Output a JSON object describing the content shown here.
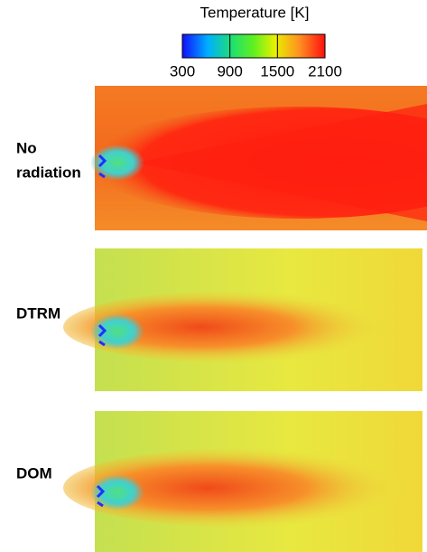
{
  "colorbar": {
    "title": "Temperature [K]",
    "lim": [
      300,
      2100
    ],
    "ticks": [
      300,
      900,
      1500,
      2100
    ]
  },
  "panels": [
    {
      "label": [
        "No",
        "radiation"
      ]
    },
    {
      "label": [
        "DTRM"
      ]
    },
    {
      "label": [
        "DOM"
      ]
    }
  ]
}
